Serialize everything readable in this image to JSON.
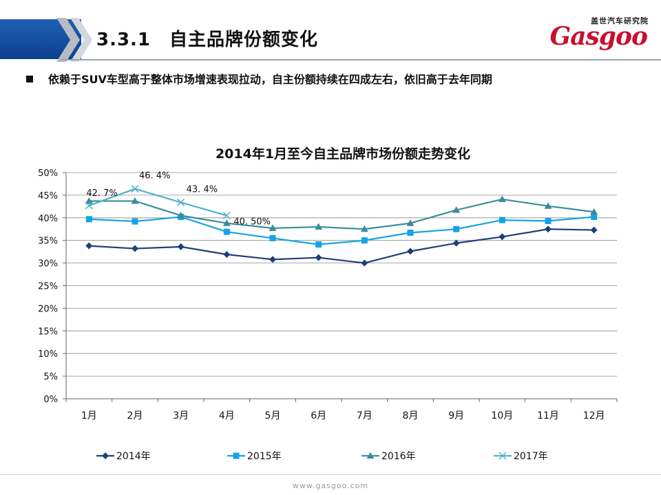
{
  "header": {
    "title": "3.3.1　自主品牌份额变化",
    "brand_cn": "盖世汽车研究院",
    "brand_logo": "Gasgoo"
  },
  "bullet": {
    "text": "依赖于SUV车型高于整体市场增速表现拉动，自主份额持续在四成左右，依旧高于去年同期"
  },
  "footer": {
    "url": "www.gasgoo.com"
  },
  "chart_data": {
    "type": "line",
    "title": "2014年1月至今自主品牌市场份额走势变化",
    "categories": [
      "1月",
      "2月",
      "3月",
      "4月",
      "5月",
      "6月",
      "7月",
      "8月",
      "9月",
      "10月",
      "11月",
      "12月"
    ],
    "y_ticks": [
      "0%",
      "5%",
      "10%",
      "15%",
      "20%",
      "25%",
      "30%",
      "35%",
      "40%",
      "45%",
      "50%"
    ],
    "ylim": [
      0,
      50
    ],
    "grid": true,
    "legend_position": "bottom",
    "series": [
      {
        "name": "2014年",
        "color": "#1f3e7a",
        "marker": "diamond",
        "values": [
          33.8,
          33.2,
          33.6,
          31.9,
          30.8,
          31.2,
          30.0,
          32.6,
          34.4,
          35.8,
          37.5,
          37.3
        ]
      },
      {
        "name": "2015年",
        "color": "#16a2e6",
        "marker": "square",
        "values": [
          39.7,
          39.2,
          40.2,
          36.9,
          35.5,
          34.1,
          35.0,
          36.7,
          37.5,
          39.5,
          39.3,
          40.2
        ]
      },
      {
        "name": "2016年",
        "color": "#3a8c9a",
        "marker": "triangle",
        "values": [
          43.7,
          43.7,
          40.5,
          38.8,
          37.7,
          38.0,
          37.5,
          38.8,
          41.7,
          44.1,
          42.6,
          41.3
        ]
      },
      {
        "name": "2017年",
        "color": "#4fb1c9",
        "marker": "x",
        "values": [
          42.7,
          46.4,
          43.4,
          40.5,
          null,
          null,
          null,
          null,
          null,
          null,
          null,
          null
        ]
      }
    ],
    "data_labels": [
      "42. 7%",
      "46. 4%",
      "43. 4%",
      "40. 50%"
    ]
  }
}
